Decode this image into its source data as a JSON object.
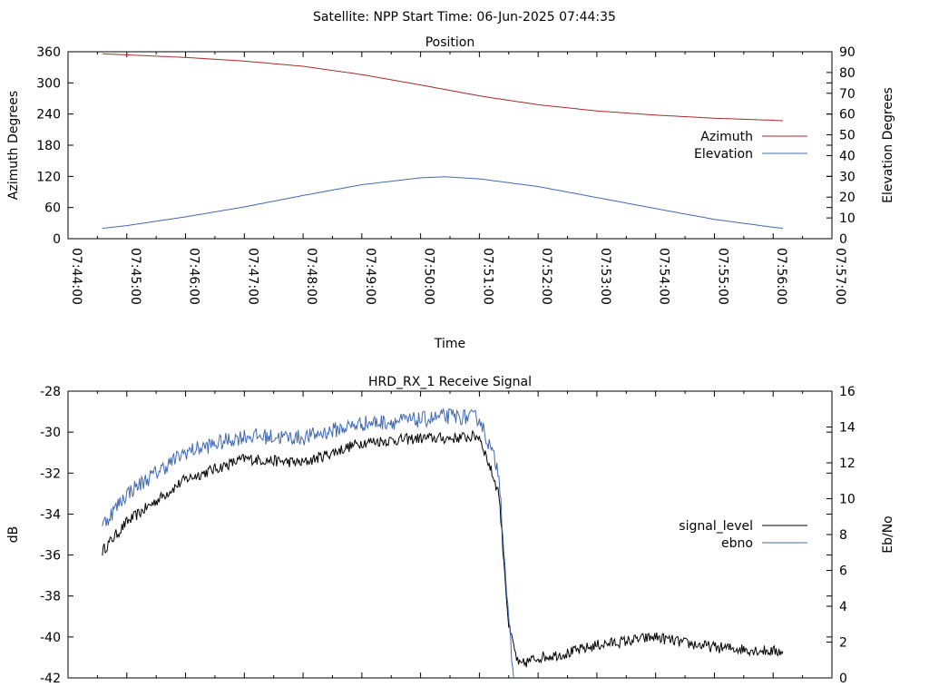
{
  "header": {
    "title": "Satellite: NPP    Start Time: 06-Jun-2025 07:44:35"
  },
  "chart_data": [
    {
      "type": "line",
      "title": "Position",
      "xlabel": "Time",
      "ylabel": "Azimuth Degrees",
      "y2label": "Elevation Degrees",
      "xlim": [
        "07:44:00",
        "07:57:00"
      ],
      "ylim": [
        0,
        360
      ],
      "y2lim": [
        0,
        90
      ],
      "grid": false,
      "legend": "right",
      "x_ticks": [
        "07:44:00",
        "07:45:00",
        "07:46:00",
        "07:47:00",
        "07:48:00",
        "07:49:00",
        "07:50:00",
        "07:51:00",
        "07:52:00",
        "07:53:00",
        "07:54:00",
        "07:55:00",
        "07:56:00",
        "07:57:00"
      ],
      "y_ticks": [
        "0",
        "60",
        "120",
        "180",
        "240",
        "300",
        "360"
      ],
      "y2_ticks": [
        "0",
        "10",
        "20",
        "30",
        "40",
        "50",
        "60",
        "70",
        "80",
        "90"
      ],
      "series": [
        {
          "name": "Azimuth",
          "axis": "y",
          "color": "#a52a2a",
          "x": [
            "07:44:35",
            "07:45:00",
            "07:46:00",
            "07:47:00",
            "07:48:00",
            "07:49:00",
            "07:50:00",
            "07:51:00",
            "07:52:00",
            "07:53:00",
            "07:54:00",
            "07:55:00",
            "07:56:00",
            "07:56:10"
          ],
          "values": [
            356,
            354,
            349,
            342,
            332,
            316,
            296,
            275,
            258,
            246,
            238,
            232,
            228,
            227
          ]
        },
        {
          "name": "Elevation",
          "axis": "y2",
          "color": "#4169b0",
          "x": [
            "07:44:35",
            "07:45:00",
            "07:46:00",
            "07:47:00",
            "07:48:00",
            "07:49:00",
            "07:50:00",
            "07:50:25",
            "07:51:00",
            "07:52:00",
            "07:53:00",
            "07:54:00",
            "07:55:00",
            "07:56:00",
            "07:56:10"
          ],
          "values": [
            5,
            6.3,
            10.5,
            15.3,
            20.8,
            26,
            29.3,
            29.8,
            28.8,
            25.1,
            19.8,
            14.5,
            9.3,
            5.5,
            5
          ]
        }
      ]
    },
    {
      "type": "line",
      "title": "HRD_RX_1 Receive Signal",
      "ylabel": "dB",
      "y2label": "Eb/No",
      "xlim": [
        "07:44:00",
        "07:57:00"
      ],
      "ylim": [
        -42,
        -28
      ],
      "y2lim": [
        0,
        16
      ],
      "grid": false,
      "legend": "right",
      "y_ticks": [
        "-42",
        "-40",
        "-38",
        "-36",
        "-34",
        "-32",
        "-30",
        "-28"
      ],
      "y2_ticks": [
        "0",
        "2",
        "4",
        "6",
        "8",
        "10",
        "12",
        "14",
        "16"
      ],
      "series": [
        {
          "name": "signal_level",
          "axis": "y",
          "color": "#000000",
          "x": [
            "07:44:35",
            "07:45:00",
            "07:46:00",
            "07:47:00",
            "07:48:00",
            "07:49:00",
            "07:50:00",
            "07:50:30",
            "07:51:00",
            "07:51:20",
            "07:51:30",
            "07:51:40",
            "07:51:50",
            "07:52:00",
            "07:52:30",
            "07:53:00",
            "07:53:30",
            "07:54:00",
            "07:54:30",
            "07:55:00",
            "07:55:30",
            "07:56:00",
            "07:56:10"
          ],
          "values": [
            -35.8,
            -34.4,
            -32.3,
            -31.3,
            -31.5,
            -30.5,
            -30.3,
            -30.3,
            -30.2,
            -33.0,
            -39.5,
            -41.4,
            -41.2,
            -41.0,
            -40.8,
            -40.4,
            -40.2,
            -40.0,
            -40.3,
            -40.5,
            -40.6,
            -40.7,
            -40.7
          ]
        },
        {
          "name": "ebno",
          "axis": "y2",
          "color": "#4169b0",
          "x": [
            "07:44:35",
            "07:45:00",
            "07:46:00",
            "07:47:00",
            "07:48:00",
            "07:49:00",
            "07:50:00",
            "07:50:30",
            "07:51:00",
            "07:51:20",
            "07:51:30",
            "07:51:35"
          ],
          "values": [
            8.5,
            10.3,
            12.6,
            13.5,
            13.4,
            14.2,
            14.4,
            14.6,
            14.5,
            11.5,
            3.0,
            0.0
          ]
        }
      ]
    }
  ]
}
